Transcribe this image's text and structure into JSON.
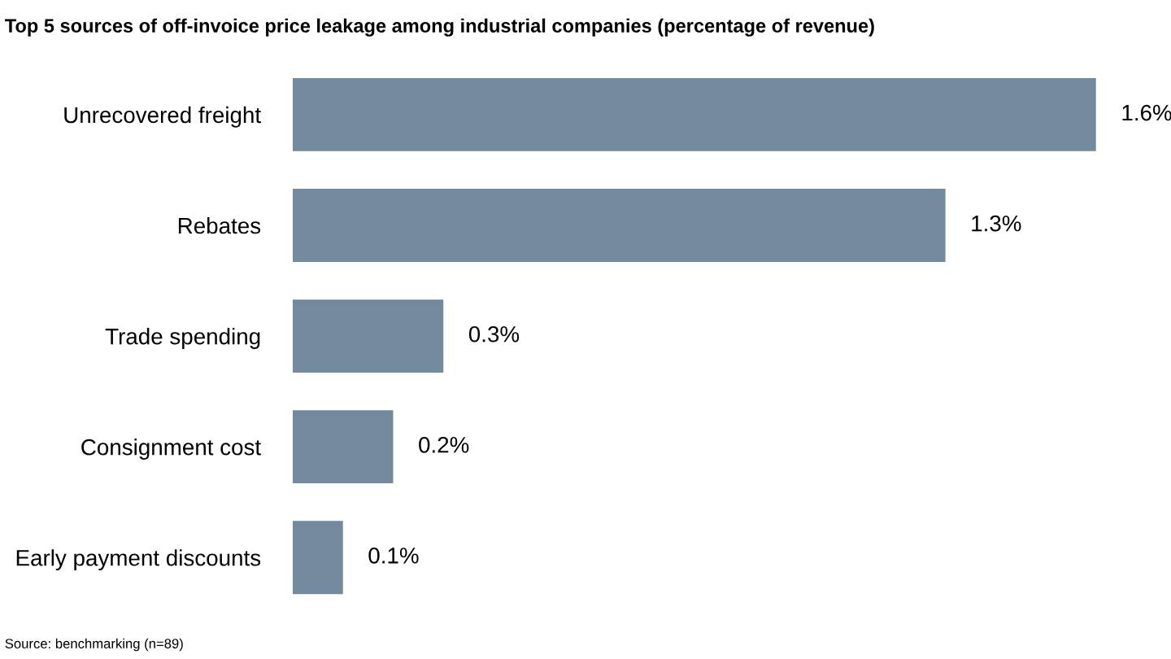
{
  "chart_data": {
    "type": "bar",
    "orientation": "horizontal",
    "title": "Top 5 sources of off-invoice price leakage among industrial companies (percentage of revenue)",
    "categories": [
      "Unrecovered freight",
      "Rebates",
      "Trade spending",
      "Consignment cost",
      "Early payment discounts"
    ],
    "values": [
      1.6,
      1.3,
      0.3,
      0.2,
      0.1
    ],
    "value_labels": [
      "1.6%",
      "1.3%",
      "0.3%",
      "0.2%",
      "0.1%"
    ],
    "color": "#738a9e",
    "grid": false,
    "legend": false,
    "annotations": [
      "Source: benchmarking (n=89)"
    ]
  }
}
